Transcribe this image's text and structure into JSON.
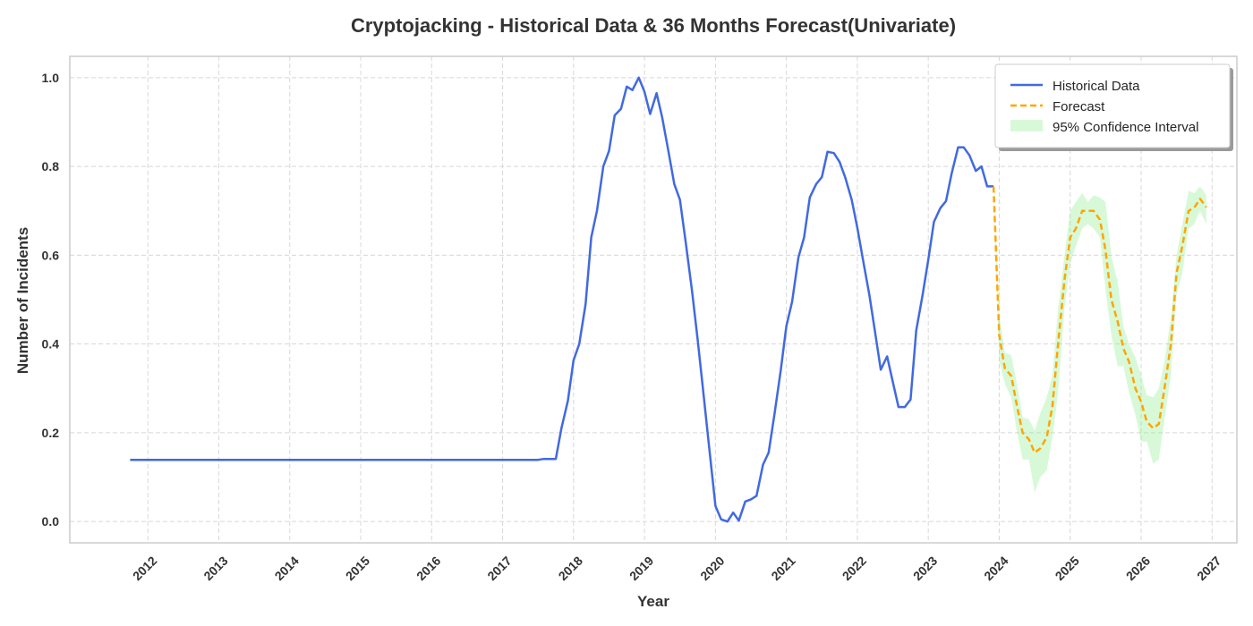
{
  "chart_data": {
    "type": "line",
    "title": "Cryptojacking - Historical Data & 36 Months Forecast(Univariate)",
    "xlabel": "Year",
    "ylabel": "Number of Incidents",
    "x_ticks": [
      "2012",
      "2013",
      "2014",
      "2015",
      "2016",
      "2017",
      "2018",
      "2019",
      "2020",
      "2021",
      "2022",
      "2023",
      "2024",
      "2025",
      "2026",
      "2027"
    ],
    "y_ticks": [
      "0.0",
      "0.2",
      "0.4",
      "0.6",
      "0.8",
      "1.0"
    ],
    "xlim": [
      2010.9,
      2027.35
    ],
    "ylim": [
      -0.048,
      1.048
    ],
    "grid": true,
    "legend_position": "top-right",
    "colors": {
      "historical": "#4169e1",
      "forecast": "#ffa500",
      "ci_fill": "#90ee90",
      "text": "#333333",
      "grid": "#d8d8d8"
    },
    "series": [
      {
        "name": "Historical Data",
        "style": "solid",
        "x": [
          2011.75,
          2012.0,
          2013.0,
          2014.0,
          2015.0,
          2016.0,
          2017.0,
          2017.5,
          2017.58,
          2017.67,
          2017.75,
          2017.83,
          2017.92,
          2018.0,
          2018.08,
          2018.17,
          2018.25,
          2018.33,
          2018.42,
          2018.5,
          2018.58,
          2018.67,
          2018.75,
          2018.83,
          2018.92,
          2019.0,
          2019.08,
          2019.17,
          2019.25,
          2019.33,
          2019.42,
          2019.5,
          2019.58,
          2019.67,
          2019.75,
          2019.83,
          2019.92,
          2020.0,
          2020.08,
          2020.17,
          2020.25,
          2020.33,
          2020.42,
          2020.5,
          2020.58,
          2020.67,
          2020.75,
          2020.83,
          2020.92,
          2021.0,
          2021.08,
          2021.17,
          2021.25,
          2021.33,
          2021.42,
          2021.5,
          2021.58,
          2021.67,
          2021.75,
          2021.83,
          2021.92,
          2022.0,
          2022.08,
          2022.17,
          2022.25,
          2022.33,
          2022.42,
          2022.5,
          2022.58,
          2022.67,
          2022.75,
          2022.83,
          2022.92,
          2023.0,
          2023.08,
          2023.17,
          2023.25,
          2023.33,
          2023.42,
          2023.5,
          2023.58,
          2023.67,
          2023.75,
          2023.83,
          2023.92
        ],
        "values": [
          0.139,
          0.139,
          0.139,
          0.139,
          0.139,
          0.139,
          0.139,
          0.139,
          0.141,
          0.141,
          0.141,
          0.21,
          0.272,
          0.363,
          0.4,
          0.49,
          0.64,
          0.7,
          0.8,
          0.835,
          0.915,
          0.93,
          0.98,
          0.972,
          1.0,
          0.968,
          0.918,
          0.965,
          0.91,
          0.84,
          0.76,
          0.725,
          0.63,
          0.52,
          0.41,
          0.29,
          0.155,
          0.035,
          0.005,
          0.0,
          0.02,
          0.002,
          0.045,
          0.05,
          0.058,
          0.128,
          0.155,
          0.24,
          0.34,
          0.44,
          0.495,
          0.595,
          0.64,
          0.73,
          0.76,
          0.776,
          0.833,
          0.83,
          0.81,
          0.775,
          0.725,
          0.662,
          0.59,
          0.51,
          0.427,
          0.342,
          0.372,
          0.315,
          0.258,
          0.258,
          0.275,
          0.43,
          0.51,
          0.59,
          0.675,
          0.706,
          0.722,
          0.784,
          0.843,
          0.843,
          0.825,
          0.79,
          0.8,
          0.755,
          0.755
        ]
      },
      {
        "name": "Forecast",
        "style": "dashed",
        "x": [
          2023.92,
          2024.0,
          2024.08,
          2024.17,
          2024.25,
          2024.33,
          2024.42,
          2024.5,
          2024.58,
          2024.67,
          2024.75,
          2024.83,
          2024.92,
          2025.0,
          2025.08,
          2025.17,
          2025.25,
          2025.33,
          2025.42,
          2025.5,
          2025.58,
          2025.67,
          2025.75,
          2025.83,
          2025.92,
          2026.0,
          2026.08,
          2026.17,
          2026.25,
          2026.33,
          2026.42,
          2026.5,
          2026.58,
          2026.67,
          2026.75,
          2026.83,
          2026.92
        ],
        "values": [
          0.755,
          0.42,
          0.345,
          0.328,
          0.26,
          0.2,
          0.185,
          0.155,
          0.165,
          0.19,
          0.26,
          0.4,
          0.545,
          0.64,
          0.66,
          0.7,
          0.7,
          0.7,
          0.68,
          0.61,
          0.5,
          0.45,
          0.39,
          0.36,
          0.3,
          0.27,
          0.225,
          0.21,
          0.22,
          0.3,
          0.4,
          0.56,
          0.62,
          0.7,
          0.707,
          0.727,
          0.708
        ]
      }
    ],
    "confidence_interval": {
      "name": "95% Confidence Interval",
      "x": [
        2023.92,
        2024.0,
        2024.08,
        2024.17,
        2024.25,
        2024.33,
        2024.42,
        2024.5,
        2024.58,
        2024.67,
        2024.75,
        2024.83,
        2024.92,
        2025.0,
        2025.08,
        2025.17,
        2025.25,
        2025.33,
        2025.42,
        2025.5,
        2025.58,
        2025.67,
        2025.75,
        2025.83,
        2025.92,
        2026.0,
        2026.08,
        2026.17,
        2026.25,
        2026.33,
        2026.42,
        2026.5,
        2026.58,
        2026.67,
        2026.75,
        2026.83,
        2026.92
      ],
      "upper": [
        0.755,
        0.47,
        0.38,
        0.375,
        0.31,
        0.235,
        0.23,
        0.205,
        0.245,
        0.28,
        0.33,
        0.48,
        0.6,
        0.7,
        0.72,
        0.74,
        0.72,
        0.735,
        0.73,
        0.72,
        0.6,
        0.54,
        0.44,
        0.4,
        0.37,
        0.33,
        0.285,
        0.28,
        0.3,
        0.36,
        0.46,
        0.6,
        0.67,
        0.745,
        0.74,
        0.755,
        0.735
      ],
      "lower": [
        0.755,
        0.36,
        0.31,
        0.28,
        0.2,
        0.14,
        0.14,
        0.065,
        0.1,
        0.115,
        0.19,
        0.29,
        0.48,
        0.58,
        0.62,
        0.66,
        0.67,
        0.66,
        0.64,
        0.52,
        0.42,
        0.35,
        0.35,
        0.29,
        0.24,
        0.18,
        0.18,
        0.13,
        0.14,
        0.23,
        0.33,
        0.51,
        0.56,
        0.66,
        0.67,
        0.7,
        0.67
      ]
    }
  }
}
